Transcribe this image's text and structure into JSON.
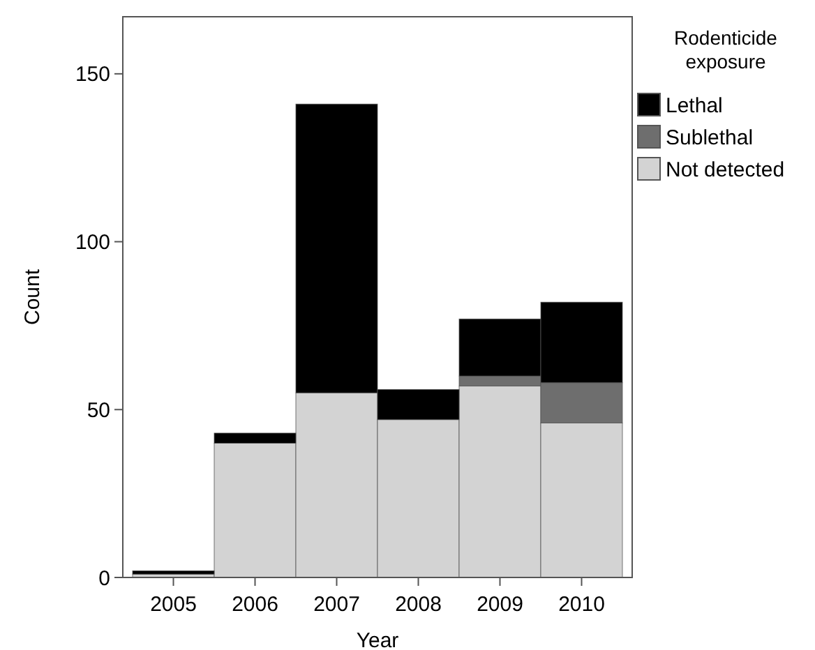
{
  "chart_data": {
    "type": "bar",
    "stacked": true,
    "xlabel": "Year",
    "ylabel": "Count",
    "legend_title": "Rodenticide exposure",
    "legend": "right",
    "categories": [
      "2005",
      "2006",
      "2007",
      "2008",
      "2009",
      "2010"
    ],
    "series": [
      {
        "name": "Not detected",
        "color": "#d3d3d3",
        "values": [
          1,
          40,
          55,
          47,
          57,
          46
        ]
      },
      {
        "name": "Sublethal",
        "color": "#6e6e6e",
        "values": [
          0,
          0,
          0,
          0,
          3,
          12
        ]
      },
      {
        "name": "Lethal",
        "color": "#000000",
        "values": [
          1,
          3,
          86,
          9,
          17,
          24
        ]
      }
    ],
    "ylim": [
      0,
      167
    ],
    "yticks": [
      0,
      50,
      100,
      150
    ]
  }
}
